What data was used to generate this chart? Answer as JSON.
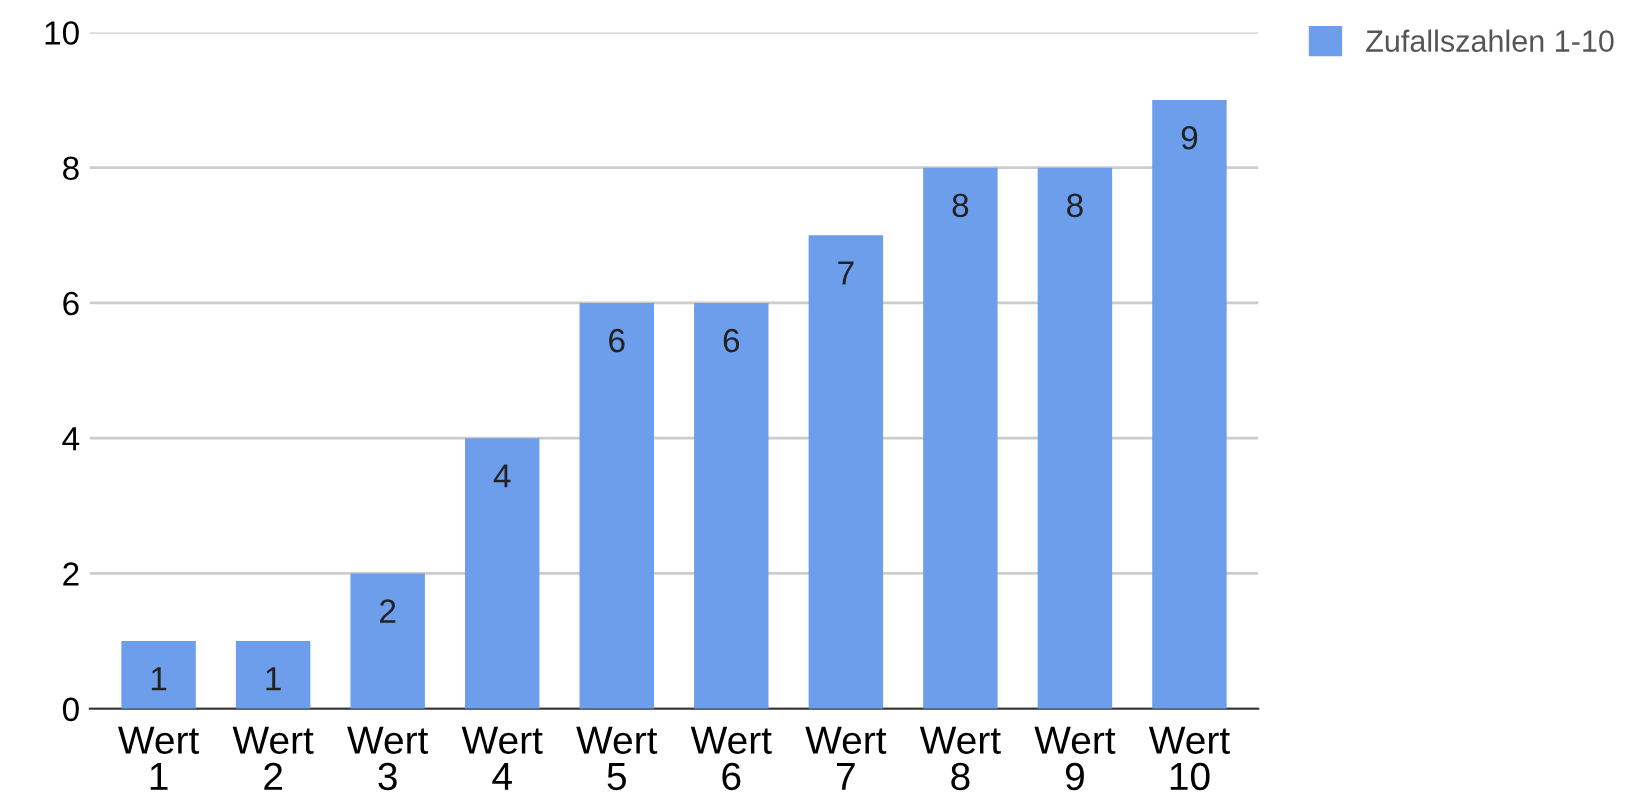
{
  "chart_data": {
    "type": "bar",
    "categories": [
      "Wert\n1",
      "Wert\n2",
      "Wert\n3",
      "Wert\n4",
      "Wert\n5",
      "Wert\n6",
      "Wert\n7",
      "Wert\n8",
      "Wert\n9",
      "Wert\n10"
    ],
    "series": [
      {
        "name": "Zufallszahlen 1-10",
        "color": "#6d9eeb",
        "values": [
          1,
          1,
          2,
          4,
          6,
          6,
          7,
          8,
          8,
          9
        ]
      }
    ],
    "ylim": [
      0,
      10
    ],
    "yticks": [
      0,
      2,
      4,
      6,
      8,
      10
    ],
    "grid": "y",
    "legend": "top right",
    "data_labels": true
  }
}
